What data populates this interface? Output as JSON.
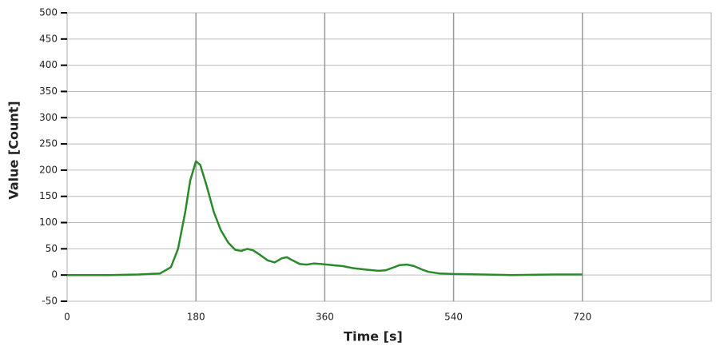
{
  "chart_data": {
    "type": "line",
    "x_label": "Time [s]",
    "y_label": "Value [Count]",
    "xlim": [
      0,
      900
    ],
    "xticks": [
      0,
      180,
      360,
      540,
      720
    ],
    "ylim": [
      -50,
      500
    ],
    "yticks": [
      -50,
      0,
      50,
      100,
      150,
      200,
      250,
      300,
      350,
      400,
      450,
      500
    ],
    "grid": true,
    "series": [
      {
        "name": "Value",
        "color": "#2a8a2a",
        "x": [
          0,
          60,
          100,
          130,
          145,
          155,
          165,
          172,
          180,
          186,
          195,
          205,
          215,
          225,
          235,
          243,
          252,
          260,
          270,
          280,
          290,
          300,
          307,
          315,
          325,
          335,
          345,
          355,
          370,
          385,
          400,
          420,
          435,
          445,
          455,
          465,
          475,
          485,
          495,
          505,
          520,
          540,
          580,
          620,
          680,
          720
        ],
        "values": [
          0,
          0,
          1,
          3,
          15,
          50,
          120,
          180,
          217,
          210,
          170,
          120,
          85,
          62,
          48,
          46,
          50,
          47,
          38,
          28,
          24,
          32,
          34,
          28,
          21,
          20,
          22,
          21,
          19,
          17,
          13,
          10,
          8,
          9,
          14,
          19,
          20,
          17,
          11,
          6,
          3,
          2,
          1,
          0,
          1,
          1
        ]
      }
    ]
  }
}
